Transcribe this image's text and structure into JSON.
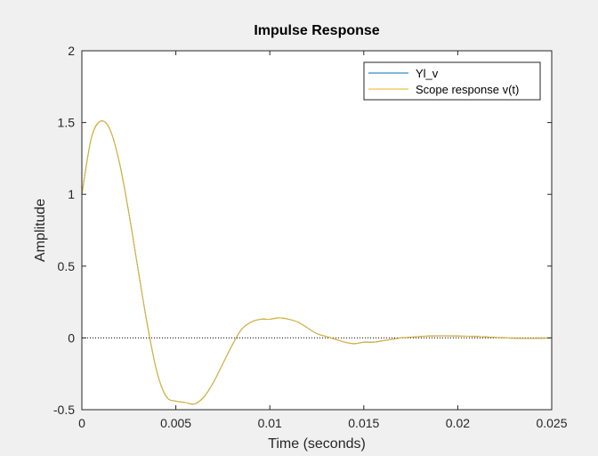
{
  "chart_data": {
    "type": "line",
    "title": "Impulse Response",
    "xlabel": "Time (seconds)",
    "ylabel": "Amplitude",
    "xlim": [
      0,
      0.025
    ],
    "ylim": [
      -0.5,
      2
    ],
    "x_ticks": [
      "0",
      "0.005",
      "0.01",
      "0.015",
      "0.02",
      "0.025"
    ],
    "y_ticks": [
      "-0.5",
      "0",
      "0.5",
      "1",
      "1.5",
      "2"
    ],
    "x_tick_values": [
      0,
      0.005,
      0.01,
      0.015,
      0.02,
      0.025
    ],
    "y_tick_values": [
      -0.5,
      0,
      0.5,
      1,
      1.5,
      2
    ],
    "grid": false,
    "legend_position": "top-right",
    "zero_line": "dotted",
    "series": [
      {
        "name": "Yl_v",
        "color": "#0072BD",
        "x": [
          0,
          0.0005,
          0.001,
          0.0015,
          0.002,
          0.0025,
          0.003,
          0.0035,
          0.004,
          0.0045,
          0.005,
          0.0055,
          0.006,
          0.0065,
          0.007,
          0.0075,
          0.008,
          0.0085,
          0.009,
          0.0095,
          0.01,
          0.0105,
          0.011,
          0.0115,
          0.012,
          0.0125,
          0.013,
          0.0135,
          0.014,
          0.0145,
          0.015,
          0.0155,
          0.016,
          0.0165,
          0.017,
          0.0175,
          0.018,
          0.0185,
          0.019,
          0.0195,
          0.02,
          0.0205,
          0.021,
          0.0215,
          0.022,
          0.0225,
          0.023,
          0.0235,
          0.024,
          0.0245,
          0.025
        ],
        "y": [
          1.0,
          1.39,
          1.51,
          1.45,
          1.22,
          0.87,
          0.47,
          0.08,
          -0.24,
          -0.41,
          -0.44,
          -0.45,
          -0.46,
          -0.41,
          -0.31,
          -0.18,
          -0.05,
          0.06,
          0.11,
          0.13,
          0.13,
          0.14,
          0.13,
          0.11,
          0.07,
          0.03,
          0.01,
          -0.01,
          -0.03,
          -0.04,
          -0.03,
          -0.03,
          -0.02,
          -0.01,
          0.0,
          0.005,
          0.01,
          0.013,
          0.014,
          0.014,
          0.013,
          0.012,
          0.01,
          0.007,
          0.003,
          0.0,
          -0.002,
          -0.003,
          -0.003,
          -0.002,
          -0.001
        ]
      },
      {
        "name": "Scope response v(t)",
        "color": "#EDB120",
        "x": [
          0,
          0.0005,
          0.001,
          0.0015,
          0.002,
          0.0025,
          0.003,
          0.0035,
          0.004,
          0.0045,
          0.005,
          0.0055,
          0.006,
          0.0065,
          0.007,
          0.0075,
          0.008,
          0.0085,
          0.009,
          0.0095,
          0.01,
          0.0105,
          0.011,
          0.0115,
          0.012,
          0.0125,
          0.013,
          0.0135,
          0.014,
          0.0145,
          0.015,
          0.0155,
          0.016,
          0.0165,
          0.017,
          0.0175,
          0.018,
          0.0185,
          0.019,
          0.0195,
          0.02,
          0.0205,
          0.021,
          0.0215,
          0.022,
          0.0225,
          0.023,
          0.0235,
          0.024,
          0.0245,
          0.025
        ],
        "y": [
          1.0,
          1.39,
          1.51,
          1.45,
          1.22,
          0.87,
          0.47,
          0.08,
          -0.24,
          -0.41,
          -0.44,
          -0.45,
          -0.46,
          -0.41,
          -0.31,
          -0.18,
          -0.05,
          0.06,
          0.11,
          0.13,
          0.13,
          0.14,
          0.13,
          0.11,
          0.07,
          0.03,
          0.01,
          -0.01,
          -0.03,
          -0.04,
          -0.03,
          -0.03,
          -0.02,
          -0.01,
          0.0,
          0.005,
          0.01,
          0.013,
          0.014,
          0.014,
          0.013,
          0.012,
          0.01,
          0.007,
          0.003,
          0.0,
          -0.002,
          -0.003,
          -0.003,
          -0.002,
          -0.001
        ]
      }
    ]
  }
}
